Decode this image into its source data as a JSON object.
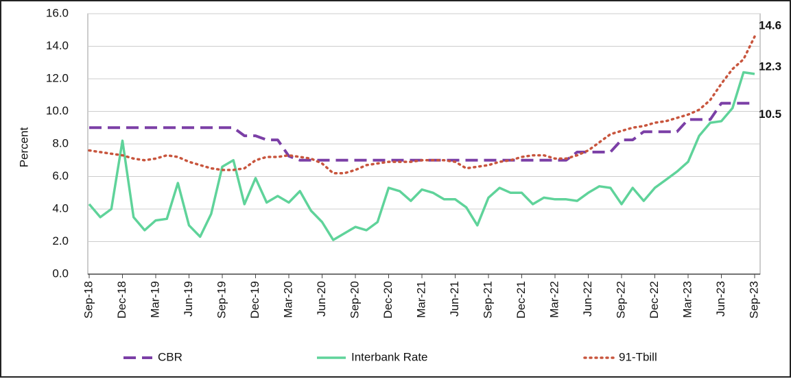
{
  "chart_data": {
    "type": "line",
    "y_axis_label": "Percent",
    "categories": [
      "Sep-18",
      null,
      null,
      "Dec-18",
      null,
      null,
      "Mar-19",
      null,
      null,
      "Jun-19",
      null,
      null,
      "Sep-19",
      null,
      null,
      "Dec-19",
      null,
      null,
      "Mar-20",
      null,
      null,
      "Jun-20",
      null,
      null,
      "Sep-20",
      null,
      null,
      "Dec-20",
      null,
      null,
      "Mar-21",
      null,
      null,
      "Jun-21",
      null,
      null,
      "Sep-21",
      null,
      null,
      "Dec-21",
      null,
      null,
      "Mar-22",
      null,
      null,
      "Jun-22",
      null,
      null,
      "Sep-22",
      null,
      null,
      "Dec-22",
      null,
      null,
      "Mar-23",
      null,
      null,
      "Jun-23",
      null,
      null,
      "Sep-23"
    ],
    "series": [
      {
        "name": "CBR",
        "color": "#7b3fa6",
        "style": "dashed",
        "end_label": "10.5",
        "values": [
          9,
          9,
          9,
          9,
          9,
          9,
          9,
          9,
          9,
          9,
          9,
          9,
          9,
          9,
          8.5,
          8.5,
          8.25,
          8.25,
          7.25,
          7,
          7,
          7,
          7,
          7,
          7,
          7,
          7,
          7,
          7,
          7,
          7,
          7,
          7,
          7,
          7,
          7,
          7,
          7,
          7,
          7,
          7,
          7,
          7,
          7,
          7.5,
          7.5,
          7.5,
          7.5,
          8.25,
          8.25,
          8.75,
          8.75,
          8.75,
          8.75,
          9.5,
          9.5,
          9.5,
          10.5,
          10.5,
          10.5,
          10.5
        ]
      },
      {
        "name": "Interbank Rate",
        "color": "#5fd39a",
        "style": "solid",
        "end_label": "12.3",
        "values": [
          4.3,
          3.5,
          4.0,
          8.2,
          3.5,
          2.7,
          3.3,
          3.4,
          5.6,
          3.0,
          2.3,
          3.7,
          6.6,
          7.0,
          4.3,
          5.9,
          4.4,
          4.8,
          4.4,
          5.1,
          3.9,
          3.2,
          2.1,
          2.5,
          2.9,
          2.7,
          3.2,
          5.3,
          5.1,
          4.5,
          5.2,
          5.0,
          4.6,
          4.6,
          4.1,
          3.0,
          4.7,
          5.3,
          5.0,
          5.0,
          4.3,
          4.7,
          4.6,
          4.6,
          4.5,
          5.0,
          5.4,
          5.3,
          4.3,
          5.3,
          4.5,
          5.3,
          5.8,
          6.3,
          6.9,
          8.5,
          9.3,
          9.4,
          10.2,
          12.4,
          12.3
        ]
      },
      {
        "name": "91-Tbill",
        "color": "#c8553d",
        "style": "dotted",
        "end_label": "14.6",
        "values": [
          7.6,
          7.5,
          7.4,
          7.3,
          7.1,
          7.0,
          7.1,
          7.3,
          7.2,
          6.9,
          6.7,
          6.5,
          6.4,
          6.4,
          6.5,
          7.0,
          7.2,
          7.2,
          7.3,
          7.2,
          7.1,
          6.8,
          6.2,
          6.2,
          6.4,
          6.7,
          6.8,
          6.9,
          6.9,
          6.9,
          7.0,
          7.0,
          7.0,
          6.9,
          6.5,
          6.6,
          6.7,
          6.9,
          7.0,
          7.2,
          7.3,
          7.3,
          7.1,
          7.1,
          7.3,
          7.6,
          8.1,
          8.6,
          8.8,
          9.0,
          9.1,
          9.3,
          9.4,
          9.6,
          9.8,
          10.1,
          10.7,
          11.7,
          12.6,
          13.2,
          14.6
        ]
      }
    ],
    "ylim": [
      0,
      16
    ],
    "yticks": [
      {
        "value": 0,
        "label": "0.0"
      },
      {
        "value": 2,
        "label": "2.0"
      },
      {
        "value": 4,
        "label": "4.0"
      },
      {
        "value": 6,
        "label": "6.0"
      },
      {
        "value": 8,
        "label": "8.0"
      },
      {
        "value": 10,
        "label": "10.0"
      },
      {
        "value": 12,
        "label": "12.0"
      },
      {
        "value": 14,
        "label": "14.0"
      },
      {
        "value": 16,
        "label": "16.0"
      }
    ],
    "grid": true
  }
}
